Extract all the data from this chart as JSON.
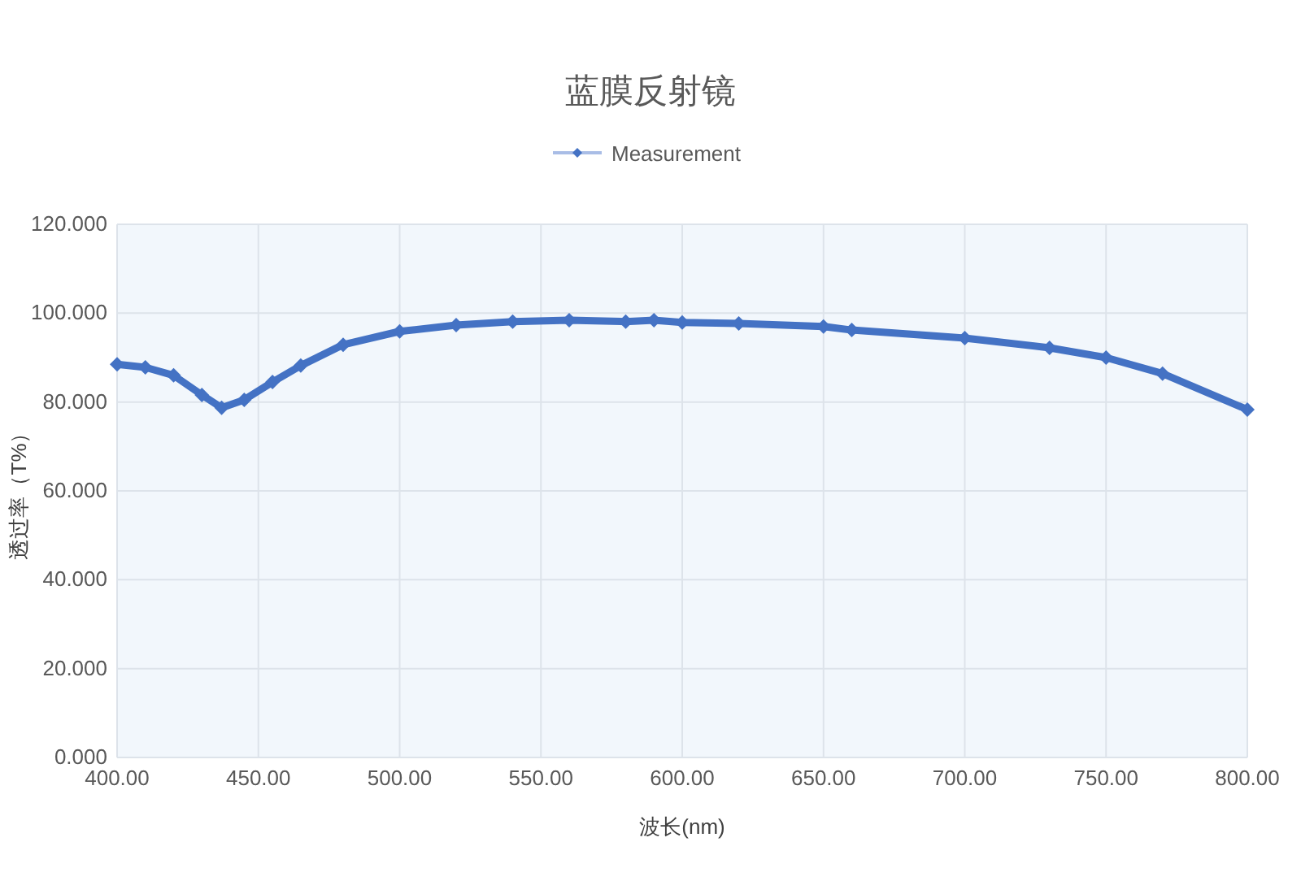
{
  "chart_data": {
    "type": "line",
    "title": "蓝膜反射镜",
    "xlabel": "波长(nm)",
    "ylabel": "透过率（T%）",
    "xlim": [
      400,
      800
    ],
    "ylim": [
      0,
      120
    ],
    "xticks": [
      {
        "value": 400,
        "label": "400.00"
      },
      {
        "value": 450,
        "label": "450.00"
      },
      {
        "value": 500,
        "label": "500.00"
      },
      {
        "value": 550,
        "label": "550.00"
      },
      {
        "value": 600,
        "label": "600.00"
      },
      {
        "value": 650,
        "label": "650.00"
      },
      {
        "value": 700,
        "label": "700.00"
      },
      {
        "value": 750,
        "label": "750.00"
      },
      {
        "value": 800,
        "label": "800.00"
      }
    ],
    "yticks": [
      {
        "value": 0,
        "label": "0.000"
      },
      {
        "value": 20,
        "label": "20.000"
      },
      {
        "value": 40,
        "label": "40.000"
      },
      {
        "value": 60,
        "label": "60.000"
      },
      {
        "value": 80,
        "label": "80.000"
      },
      {
        "value": 100,
        "label": "100.000"
      },
      {
        "value": 120,
        "label": "120.000"
      }
    ],
    "grid": true,
    "legend": "top",
    "marker": "diamond",
    "line_style": "solid",
    "x": [
      400,
      410,
      420,
      430,
      437,
      445,
      455,
      465,
      480,
      500,
      520,
      540,
      560,
      580,
      590,
      600,
      620,
      650,
      660,
      700,
      730,
      750,
      770,
      800
    ],
    "series": [
      {
        "name": "Measurement",
        "color": "#4472c4",
        "values": [
          88.5,
          87.8,
          86,
          81.6,
          78.7,
          80.5,
          84.5,
          88.2,
          92.9,
          95.9,
          97.3,
          98.1,
          98.4,
          98.1,
          98.4,
          97.9,
          97.7,
          97,
          96.2,
          94.4,
          92.2,
          90,
          86.4,
          78.3
        ]
      }
    ]
  }
}
